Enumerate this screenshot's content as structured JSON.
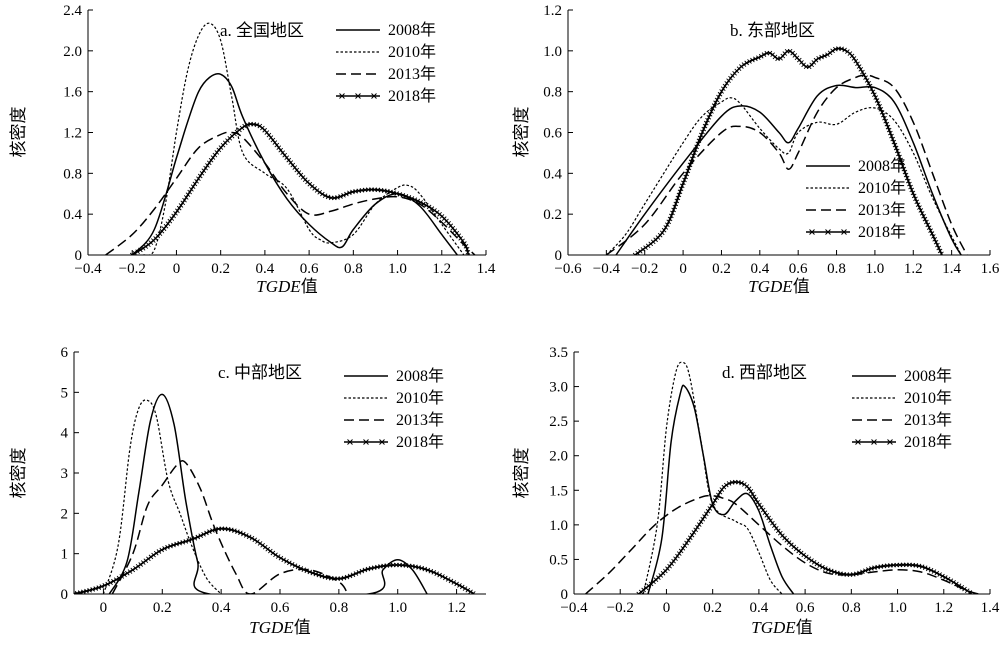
{
  "chart_data": [
    {
      "type": "line",
      "title": "a. 全国地区",
      "xlabel_italic": "TGDE",
      "xlabel_suffix": "值",
      "ylabel": "核密度",
      "xlim": [
        -0.4,
        1.4
      ],
      "ylim": [
        0,
        2.4
      ],
      "xticks": [
        -0.4,
        -0.2,
        0,
        0.2,
        0.4,
        0.6,
        0.8,
        1.0,
        1.2,
        1.4
      ],
      "xtick_labels": [
        "−0.4",
        "−0.2",
        "0",
        "0.2",
        "0.4",
        "0.6",
        "0.8",
        "1.0",
        "1.2",
        "1.4"
      ],
      "yticks": [
        0,
        0.4,
        0.8,
        1.2,
        1.6,
        2.0,
        2.4
      ],
      "ytick_labels": [
        "0",
        "0.4",
        "0.8",
        "1.2",
        "1.6",
        "2.0",
        "2.4"
      ],
      "legend_position": "top-right",
      "series": [
        {
          "name": "2008年",
          "style": "solid",
          "x": [
            -0.2,
            -0.1,
            0.0,
            0.05,
            0.1,
            0.15,
            0.2,
            0.25,
            0.3,
            0.4,
            0.5,
            0.6,
            0.7,
            0.75,
            0.8,
            0.9,
            1.0,
            1.1,
            1.2,
            1.27
          ],
          "y": [
            0,
            0.25,
            0.95,
            1.3,
            1.6,
            1.74,
            1.77,
            1.65,
            1.35,
            0.9,
            0.55,
            0.3,
            0.12,
            0.08,
            0.25,
            0.5,
            0.6,
            0.48,
            0.2,
            0
          ]
        },
        {
          "name": "2010年",
          "style": "dotted",
          "x": [
            -0.15,
            -0.1,
            -0.05,
            0.0,
            0.05,
            0.1,
            0.15,
            0.2,
            0.25,
            0.3,
            0.4,
            0.5,
            0.6,
            0.65,
            0.7,
            0.8,
            0.9,
            1.0,
            1.05,
            1.1,
            1.2,
            1.3
          ],
          "y": [
            0,
            0.05,
            0.5,
            1.2,
            1.8,
            2.15,
            2.27,
            2.1,
            1.55,
            1.0,
            0.8,
            0.65,
            0.25,
            0.15,
            0.12,
            0.2,
            0.5,
            0.66,
            0.68,
            0.6,
            0.3,
            0
          ]
        },
        {
          "name": "2013年",
          "style": "dashed",
          "x": [
            -0.32,
            -0.2,
            -0.1,
            0.0,
            0.1,
            0.2,
            0.25,
            0.3,
            0.4,
            0.5,
            0.6,
            0.7,
            0.8,
            0.9,
            1.0,
            1.1,
            1.2,
            1.3,
            1.35
          ],
          "y": [
            0,
            0.2,
            0.45,
            0.75,
            1.05,
            1.18,
            1.2,
            1.15,
            0.9,
            0.6,
            0.4,
            0.43,
            0.5,
            0.55,
            0.57,
            0.5,
            0.32,
            0.1,
            0
          ]
        },
        {
          "name": "2018年",
          "style": "star",
          "x": [
            -0.2,
            -0.1,
            0.0,
            0.1,
            0.2,
            0.3,
            0.35,
            0.4,
            0.5,
            0.6,
            0.7,
            0.8,
            0.9,
            1.0,
            1.1,
            1.2,
            1.3,
            1.32
          ],
          "y": [
            0,
            0.15,
            0.42,
            0.75,
            1.05,
            1.25,
            1.28,
            1.22,
            0.95,
            0.7,
            0.56,
            0.62,
            0.64,
            0.6,
            0.52,
            0.38,
            0.12,
            0
          ]
        }
      ]
    },
    {
      "type": "line",
      "title": "b. 东部地区",
      "xlabel_italic": "TGDE",
      "xlabel_suffix": "值",
      "ylabel": "核密度",
      "xlim": [
        -0.6,
        1.6
      ],
      "ylim": [
        0,
        1.2
      ],
      "xticks": [
        -0.6,
        -0.4,
        -0.2,
        0,
        0.2,
        0.4,
        0.6,
        0.8,
        1.0,
        1.2,
        1.4,
        1.6
      ],
      "xtick_labels": [
        "−0.6",
        "−0.4",
        "−0.2",
        "0",
        "0.2",
        "0.4",
        "0.6",
        "0.8",
        "1.0",
        "1.2",
        "1.4",
        "1.6"
      ],
      "yticks": [
        0,
        0.2,
        0.4,
        0.6,
        0.8,
        1.0,
        1.2
      ],
      "ytick_labels": [
        "0",
        "0.2",
        "0.4",
        "0.6",
        "0.8",
        "1.0",
        "1.2"
      ],
      "legend_position": "bottom-right",
      "series": [
        {
          "name": "2008年",
          "style": "solid",
          "x": [
            -0.35,
            -0.2,
            0.0,
            0.2,
            0.3,
            0.4,
            0.5,
            0.55,
            0.6,
            0.7,
            0.8,
            0.9,
            1.0,
            1.1,
            1.2,
            1.3,
            1.4,
            1.45
          ],
          "y": [
            0,
            0.2,
            0.45,
            0.68,
            0.73,
            0.7,
            0.6,
            0.55,
            0.62,
            0.78,
            0.83,
            0.82,
            0.82,
            0.75,
            0.55,
            0.3,
            0.08,
            0
          ]
        },
        {
          "name": "2010年",
          "style": "dotted",
          "x": [
            -0.4,
            -0.3,
            -0.2,
            0.0,
            0.1,
            0.2,
            0.25,
            0.3,
            0.4,
            0.5,
            0.55,
            0.6,
            0.7,
            0.8,
            0.9,
            1.0,
            1.1,
            1.2,
            1.3,
            1.45
          ],
          "y": [
            0,
            0.1,
            0.25,
            0.55,
            0.68,
            0.75,
            0.77,
            0.74,
            0.62,
            0.52,
            0.5,
            0.6,
            0.65,
            0.64,
            0.7,
            0.72,
            0.66,
            0.5,
            0.28,
            0
          ]
        },
        {
          "name": "2013年",
          "style": "dashed",
          "x": [
            -0.4,
            -0.2,
            0.0,
            0.2,
            0.3,
            0.4,
            0.5,
            0.55,
            0.6,
            0.7,
            0.8,
            0.9,
            0.95,
            1.0,
            1.1,
            1.2,
            1.3,
            1.4,
            1.48
          ],
          "y": [
            0,
            0.15,
            0.4,
            0.6,
            0.63,
            0.6,
            0.5,
            0.42,
            0.5,
            0.7,
            0.82,
            0.87,
            0.88,
            0.87,
            0.82,
            0.65,
            0.4,
            0.15,
            0
          ]
        },
        {
          "name": "2018年",
          "style": "star",
          "x": [
            -0.25,
            -0.1,
            0.0,
            0.1,
            0.2,
            0.3,
            0.4,
            0.45,
            0.5,
            0.55,
            0.6,
            0.65,
            0.7,
            0.75,
            0.8,
            0.85,
            0.9,
            1.0,
            1.1,
            1.2,
            1.3,
            1.35
          ],
          "y": [
            0,
            0.12,
            0.35,
            0.6,
            0.8,
            0.92,
            0.97,
            0.99,
            0.96,
            1.0,
            0.96,
            0.92,
            0.96,
            0.98,
            1.01,
            1.0,
            0.95,
            0.78,
            0.55,
            0.3,
            0.1,
            0
          ]
        }
      ]
    },
    {
      "type": "line",
      "title": "c. 中部地区",
      "xlabel_italic": "TGDE",
      "xlabel_suffix": "值",
      "ylabel": "核密度",
      "xlim": [
        -0.1,
        1.3
      ],
      "ylim": [
        0,
        6
      ],
      "xticks": [
        0,
        0.2,
        0.4,
        0.6,
        0.8,
        1.0,
        1.2
      ],
      "xtick_labels": [
        "0",
        "0.2",
        "0.4",
        "0.6",
        "0.8",
        "1.0",
        "1.2"
      ],
      "yticks": [
        0,
        1,
        2,
        3,
        4,
        5,
        6
      ],
      "ytick_labels": [
        "0",
        "1",
        "2",
        "3",
        "4",
        "5",
        "6"
      ],
      "legend_position": "top-right",
      "series": [
        {
          "name": "2008年",
          "style": "solid",
          "x": [
            0.02,
            0.08,
            0.12,
            0.16,
            0.2,
            0.24,
            0.28,
            0.32,
            0.36,
            0.9,
            0.95,
            1.0,
            1.05,
            1.1
          ],
          "y": [
            0,
            0.8,
            2.5,
            4.3,
            4.95,
            4.2,
            2.3,
            0.8,
            0,
            0,
            0.6,
            0.85,
            0.6,
            0
          ]
        },
        {
          "name": "2010年",
          "style": "dotted",
          "x": [
            0.0,
            0.05,
            0.09,
            0.12,
            0.15,
            0.18,
            0.22,
            0.26,
            0.3,
            0.35,
            0.4
          ],
          "y": [
            0,
            1.2,
            3.6,
            4.6,
            4.8,
            4.4,
            2.8,
            2.0,
            1.2,
            0.4,
            0
          ]
        },
        {
          "name": "2013年",
          "style": "dashed",
          "x": [
            0.03,
            0.1,
            0.15,
            0.2,
            0.25,
            0.28,
            0.33,
            0.38,
            0.45,
            0.5,
            0.6,
            0.7,
            0.8,
            0.83
          ],
          "y": [
            0,
            1.0,
            2.2,
            2.7,
            3.2,
            3.25,
            2.6,
            1.6,
            0.5,
            0,
            0.5,
            0.6,
            0.3,
            0
          ]
        },
        {
          "name": "2018年",
          "style": "star",
          "x": [
            -0.1,
            0.0,
            0.1,
            0.2,
            0.3,
            0.4,
            0.5,
            0.6,
            0.7,
            0.8,
            0.9,
            1.0,
            1.1,
            1.2,
            1.26
          ],
          "y": [
            0,
            0.2,
            0.6,
            1.1,
            1.35,
            1.62,
            1.4,
            0.9,
            0.55,
            0.38,
            0.62,
            0.72,
            0.6,
            0.25,
            0
          ]
        }
      ]
    },
    {
      "type": "line",
      "title": "d. 西部地区",
      "xlabel_italic": "TGDE",
      "xlabel_suffix": "值",
      "ylabel": "核密度",
      "xlim": [
        -0.4,
        1.4
      ],
      "ylim": [
        0,
        3.5
      ],
      "xticks": [
        -0.4,
        -0.2,
        0,
        0.2,
        0.4,
        0.6,
        0.8,
        1.0,
        1.2,
        1.4
      ],
      "xtick_labels": [
        "−0.4",
        "−0.2",
        "0",
        "0.2",
        "0.4",
        "0.6",
        "0.8",
        "1.0",
        "1.2",
        "1.4"
      ],
      "yticks": [
        0,
        0.5,
        1.0,
        1.5,
        2.0,
        2.5,
        3.0,
        3.5
      ],
      "ytick_labels": [
        "0",
        "0.5",
        "1.0",
        "1.5",
        "2.0",
        "2.5",
        "3.0",
        "3.5"
      ],
      "legend_position": "top-right",
      "series": [
        {
          "name": "2008年",
          "style": "solid",
          "x": [
            -0.08,
            -0.02,
            0.02,
            0.06,
            0.08,
            0.12,
            0.16,
            0.2,
            0.25,
            0.3,
            0.35,
            0.4,
            0.45,
            0.5,
            0.55
          ],
          "y": [
            0,
            0.8,
            2.2,
            2.9,
            3.0,
            2.7,
            2.0,
            1.3,
            1.15,
            1.35,
            1.45,
            1.2,
            0.7,
            0.25,
            0
          ]
        },
        {
          "name": "2010年",
          "style": "dotted",
          "x": [
            -0.1,
            -0.04,
            0.0,
            0.04,
            0.07,
            0.1,
            0.15,
            0.2,
            0.3,
            0.35,
            0.4,
            0.45,
            0.5
          ],
          "y": [
            0,
            1.0,
            2.4,
            3.2,
            3.35,
            3.15,
            2.2,
            1.3,
            1.05,
            0.95,
            0.6,
            0.2,
            0
          ]
        },
        {
          "name": "2013年",
          "style": "dashed",
          "x": [
            -0.35,
            -0.25,
            -0.15,
            -0.05,
            0.05,
            0.15,
            0.2,
            0.25,
            0.3,
            0.4,
            0.5,
            0.6,
            0.7,
            0.8,
            0.9,
            1.0,
            1.1,
            1.2,
            1.3,
            1.35
          ],
          "y": [
            0,
            0.3,
            0.65,
            1.0,
            1.25,
            1.4,
            1.42,
            1.38,
            1.3,
            1.0,
            0.7,
            0.45,
            0.3,
            0.28,
            0.32,
            0.35,
            0.32,
            0.2,
            0.05,
            0
          ]
        },
        {
          "name": "2018年",
          "style": "star",
          "x": [
            -0.12,
            0.0,
            0.1,
            0.2,
            0.25,
            0.3,
            0.35,
            0.4,
            0.5,
            0.6,
            0.7,
            0.8,
            0.9,
            1.0,
            1.1,
            1.2,
            1.3,
            1.32
          ],
          "y": [
            0,
            0.35,
            0.8,
            1.3,
            1.55,
            1.62,
            1.55,
            1.3,
            0.85,
            0.55,
            0.35,
            0.28,
            0.38,
            0.42,
            0.4,
            0.25,
            0.05,
            0
          ]
        }
      ]
    }
  ]
}
